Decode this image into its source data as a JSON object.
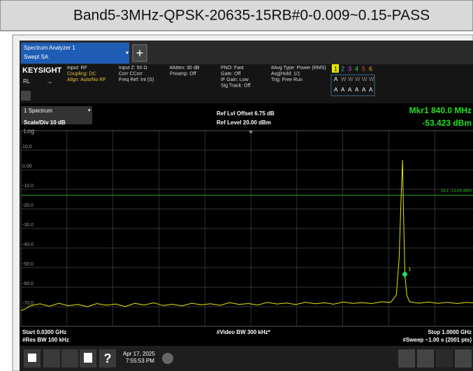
{
  "header": {
    "title": "Band5-3MHz-QPSK-20635-15RB#0-0.009~0.15-PASS"
  },
  "app": {
    "tab": [
      "Spectrum Analyzer 1",
      "Swept SA"
    ],
    "brand": "KEYSIGHT",
    "mode": "RL"
  },
  "settings": [
    [
      "Input: RF",
      "Coupling: DC",
      "Align: Auto/No RF"
    ],
    [
      "Input Z: 50 Ω",
      "Corr CCorr",
      "Freq Ref: Int (S)"
    ],
    [
      "#Atten: 30 dB",
      "Preamp: Off"
    ],
    [
      "PNO: Fast",
      "Gate: Off",
      "IF Gain: Low",
      "Sig Track: Off"
    ],
    [
      "#Avg Type: Power (RMS)",
      "Avg|Hold: 1/1",
      "Trig: Free Run"
    ]
  ],
  "traces": {
    "numbers": [
      "1",
      "2",
      "3",
      "4",
      "5",
      "6"
    ],
    "types": [
      "A",
      "W",
      "W",
      "W",
      "W",
      "W"
    ],
    "detectors": [
      "A",
      "A",
      "A",
      "A",
      "A",
      "A"
    ]
  },
  "plot": {
    "window": "1 Spectrum",
    "scale": "Scale/Div 10 dB",
    "log": "Log",
    "ref_offset": "Ref Lvl Offset 6.75 dB",
    "ref_level": "Ref Level 20.00 dBm",
    "marker_freq": "Mkr1 840.0 MHz",
    "marker_level": "-53.423 dBm",
    "marker": {
      "label": "1",
      "x": 840,
      "y": -53.423
    },
    "display_line": {
      "label": "DL1 -13.00 dBm",
      "value": -13
    },
    "xlim": [
      30,
      1000
    ],
    "ylim": [
      -80,
      20
    ],
    "yticks": [
      {
        "value": 10,
        "label": "10.0"
      },
      {
        "value": 0,
        "label": "0.00"
      },
      {
        "value": -10,
        "label": "-10.0"
      },
      {
        "value": -20,
        "label": "-20.0"
      },
      {
        "value": -30,
        "label": "-30.0"
      },
      {
        "value": -40,
        "label": "-40.0"
      },
      {
        "value": -50,
        "label": "-50.0"
      },
      {
        "value": -60,
        "label": "-60.0"
      },
      {
        "value": -70,
        "label": "-70.0"
      }
    ],
    "xgrid": [
      127,
      224,
      321,
      418,
      515,
      612,
      709,
      806,
      903
    ],
    "trace": {
      "x": [
        30,
        40,
        50,
        70,
        90,
        110,
        130,
        150,
        170,
        190,
        210,
        230,
        250,
        270,
        290,
        310,
        330,
        350,
        370,
        390,
        410,
        430,
        450,
        470,
        490,
        510,
        530,
        550,
        570,
        590,
        610,
        630,
        650,
        670,
        690,
        710,
        730,
        750,
        770,
        790,
        810,
        822,
        828,
        832,
        835,
        837,
        840,
        844,
        850,
        870,
        890,
        910,
        930,
        950,
        970,
        990,
        1000
      ],
      "values": [
        -72,
        -71,
        -69.5,
        -68.5,
        -69.8,
        -68.2,
        -69.5,
        -68.8,
        -70,
        -68.4,
        -69.2,
        -68.6,
        -69.9,
        -68.3,
        -69.1,
        -68,
        -69.4,
        -68.7,
        -69.6,
        -68.2,
        -69,
        -68.5,
        -69.3,
        -67.9,
        -68.8,
        -68.4,
        -69.1,
        -67.8,
        -68.6,
        -68.1,
        -68.9,
        -67.7,
        -68.5,
        -68,
        -68.7,
        -67.6,
        -68.3,
        -67.9,
        -68.4,
        -67.5,
        -67.8,
        -64,
        -45,
        -15,
        5,
        -20,
        -53.423,
        -64,
        -67.5,
        -68.2,
        -67.6,
        -68.3,
        -67.7,
        -68.4,
        -67.8,
        -68.1,
        -67.9
      ]
    },
    "footer": {
      "start": "Start 0.0300 GHz",
      "rbw": "#Res BW 100 kHz",
      "vbw": "#Video BW 300 kHz*",
      "stop": "Stop 1.0000 GHz",
      "sweep": "#Sweep ~1.00 s (2001 pts)"
    }
  },
  "taskbar": {
    "date": "Apr 17, 2025",
    "time": "7:55:53 PM"
  }
}
